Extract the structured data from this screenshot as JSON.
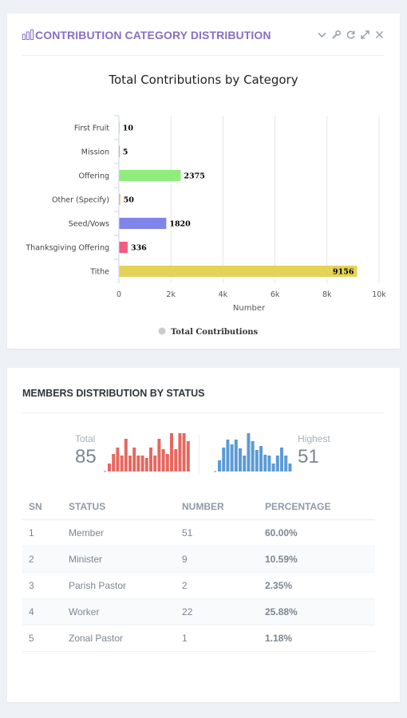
{
  "widget1": {
    "title": "CONTRIBUTION CATEGORY DISTRIBUTION",
    "icon": "bar-chart-icon",
    "tools": [
      "chevron-down-icon",
      "wrench-icon",
      "refresh-icon",
      "expand-icon",
      "close-icon"
    ]
  },
  "chart_data": {
    "type": "bar",
    "orientation": "horizontal",
    "title": "Total Contributions by Category",
    "xlabel": "Number",
    "ylabel": "",
    "categories": [
      "First Fruit",
      "Mission",
      "Offering",
      "Other (Specify)",
      "Seed/Vows",
      "Thanksgiving Offering",
      "Tithe"
    ],
    "series": [
      {
        "name": "Total Contributions",
        "values": [
          10,
          5,
          2375,
          50,
          1820,
          336,
          9156
        ],
        "data_labels": [
          "10",
          "5",
          "2375",
          "50",
          "1820",
          "336",
          "9156"
        ]
      }
    ],
    "bar_colors": [
      "#7cb5ec",
      "#434348",
      "#90ed7d",
      "#f7a35c",
      "#8085e9",
      "#f15c80",
      "#e4d354"
    ],
    "xlim": [
      0,
      10000
    ],
    "xticks": [
      0,
      2000,
      4000,
      6000,
      8000,
      10000
    ],
    "xtick_labels": [
      "0",
      "2k",
      "4k",
      "6k",
      "8k",
      "10k"
    ],
    "grid": "vertical",
    "legend": {
      "position": "bottom",
      "label": "Total Contributions",
      "marker_color": "#cccccc"
    }
  },
  "widget2": {
    "title": "MEMBERS DISTRIBUTION BY STATUS",
    "total": {
      "label": "Total",
      "value": "85",
      "color": "#e5685f"
    },
    "highest": {
      "label": "Highest",
      "value": "51",
      "color": "#5b9bd5"
    },
    "table": {
      "headers": [
        "SN",
        "STATUS",
        "NUMBER",
        "PERCENTAGE"
      ],
      "rows": [
        {
          "sn": "1",
          "status": "Member",
          "number": "51",
          "percentage": "60.00%"
        },
        {
          "sn": "2",
          "status": "Minister",
          "number": "9",
          "percentage": "10.59%"
        },
        {
          "sn": "3",
          "status": "Parish Pastor",
          "number": "2",
          "percentage": "2.35%"
        },
        {
          "sn": "4",
          "status": "Worker",
          "number": "22",
          "percentage": "25.88%"
        },
        {
          "sn": "5",
          "status": "Zonal Pastor",
          "number": "1",
          "percentage": "1.18%"
        }
      ]
    }
  }
}
